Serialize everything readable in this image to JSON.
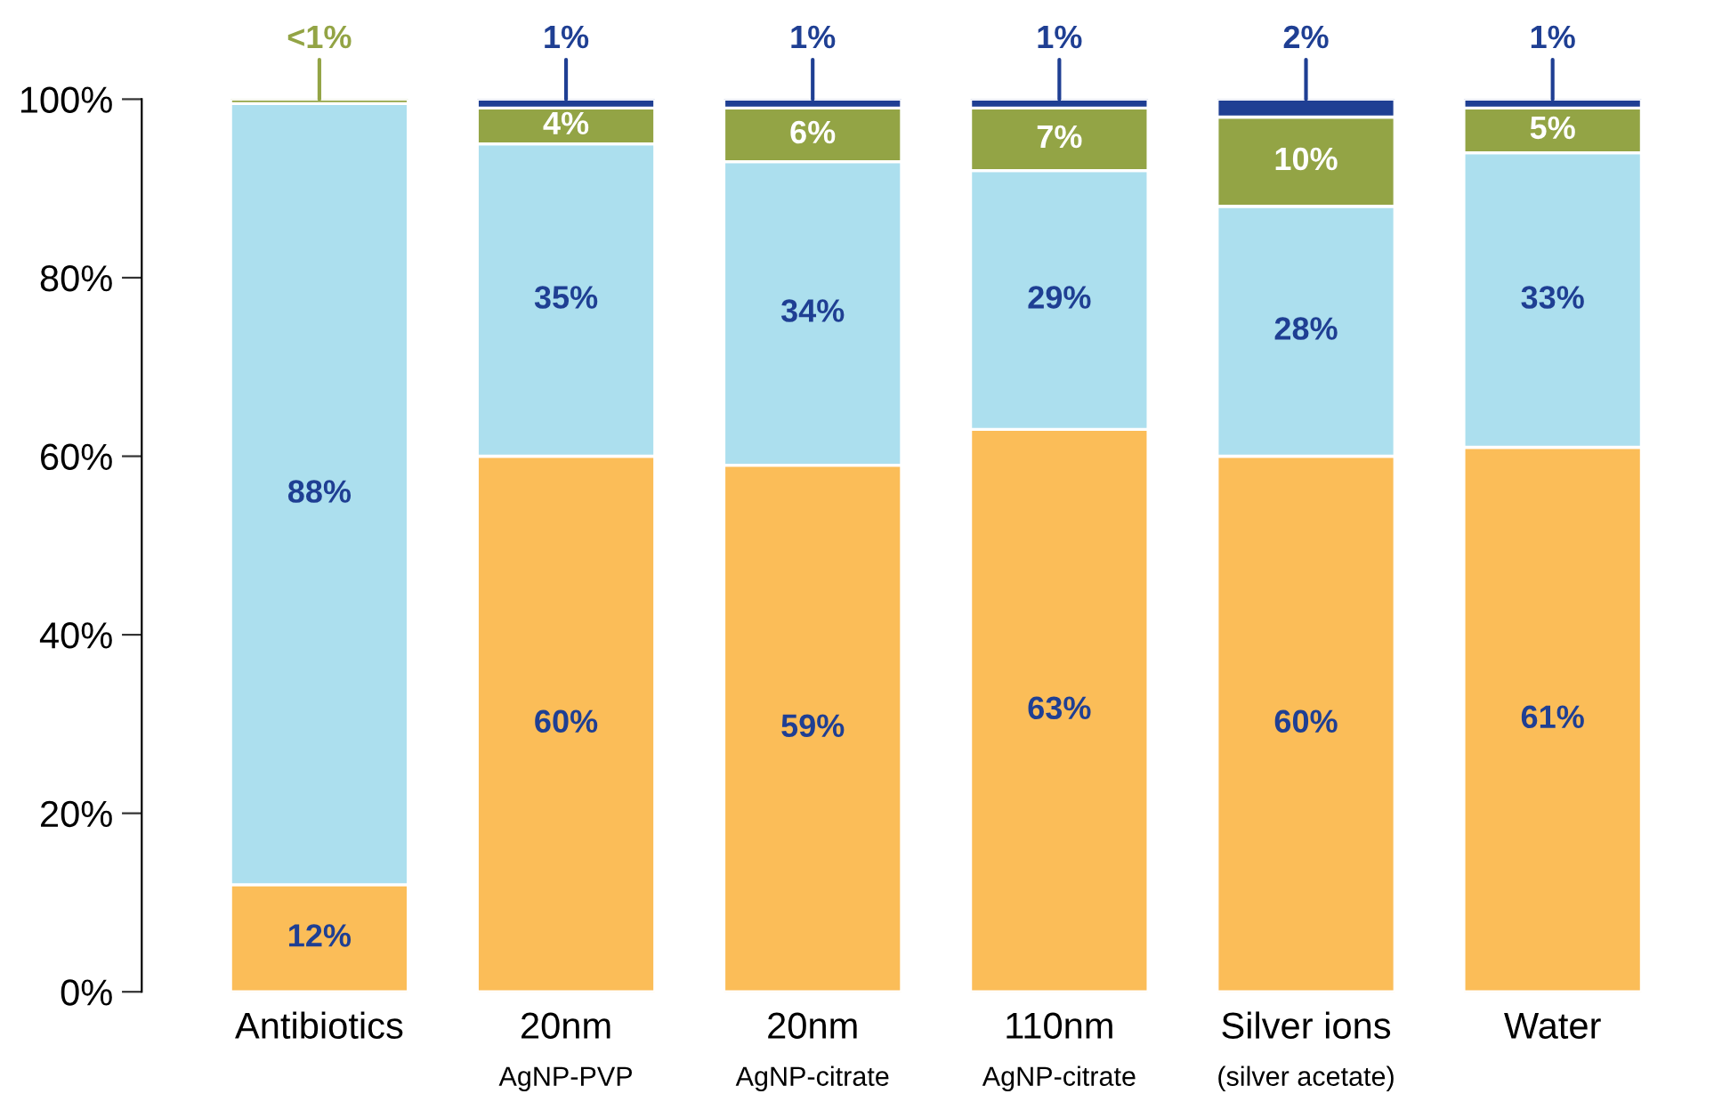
{
  "chart_data": {
    "type": "bar",
    "stacked": true,
    "categories": [
      "Antibiotics",
      "20nm\nAgNP-PVP",
      "20nm\nAgNP-citrate",
      "110nm\nAgNP-citrate",
      "Silver ions\n(silver acetate)",
      "Water"
    ],
    "series": [
      {
        "color": "#fbbd58",
        "values": [
          12,
          60,
          59,
          63,
          60,
          61
        ],
        "value_labels": [
          "12%",
          "60%",
          "59%",
          "63%",
          "60%",
          "61%"
        ]
      },
      {
        "color": "#acdfee",
        "values": [
          87.5,
          35,
          34,
          29,
          28,
          33
        ],
        "value_labels": [
          "88%",
          "35%",
          "34%",
          "29%",
          "28%",
          "33%"
        ]
      },
      {
        "color": "#93a445",
        "values": [
          0.5,
          4,
          6,
          7,
          10,
          5
        ],
        "value_labels": [
          "<1%",
          "4%",
          "6%",
          "7%",
          "10%",
          "5%"
        ]
      },
      {
        "color": "#1f3f93",
        "values": [
          null,
          1,
          1,
          1,
          2,
          1
        ],
        "value_labels": [
          null,
          "1%",
          "1%",
          "1%",
          "2%",
          "1%"
        ]
      }
    ],
    "ylim": [
      0,
      100
    ],
    "yticks": [
      {
        "value": 0,
        "label": "0%"
      },
      {
        "value": 20,
        "label": "20%"
      },
      {
        "value": 40,
        "label": "40%"
      },
      {
        "value": 60,
        "label": "60%"
      },
      {
        "value": 80,
        "label": "80%"
      },
      {
        "value": 100,
        "label": "100%"
      }
    ],
    "grid": false,
    "legend": false
  }
}
